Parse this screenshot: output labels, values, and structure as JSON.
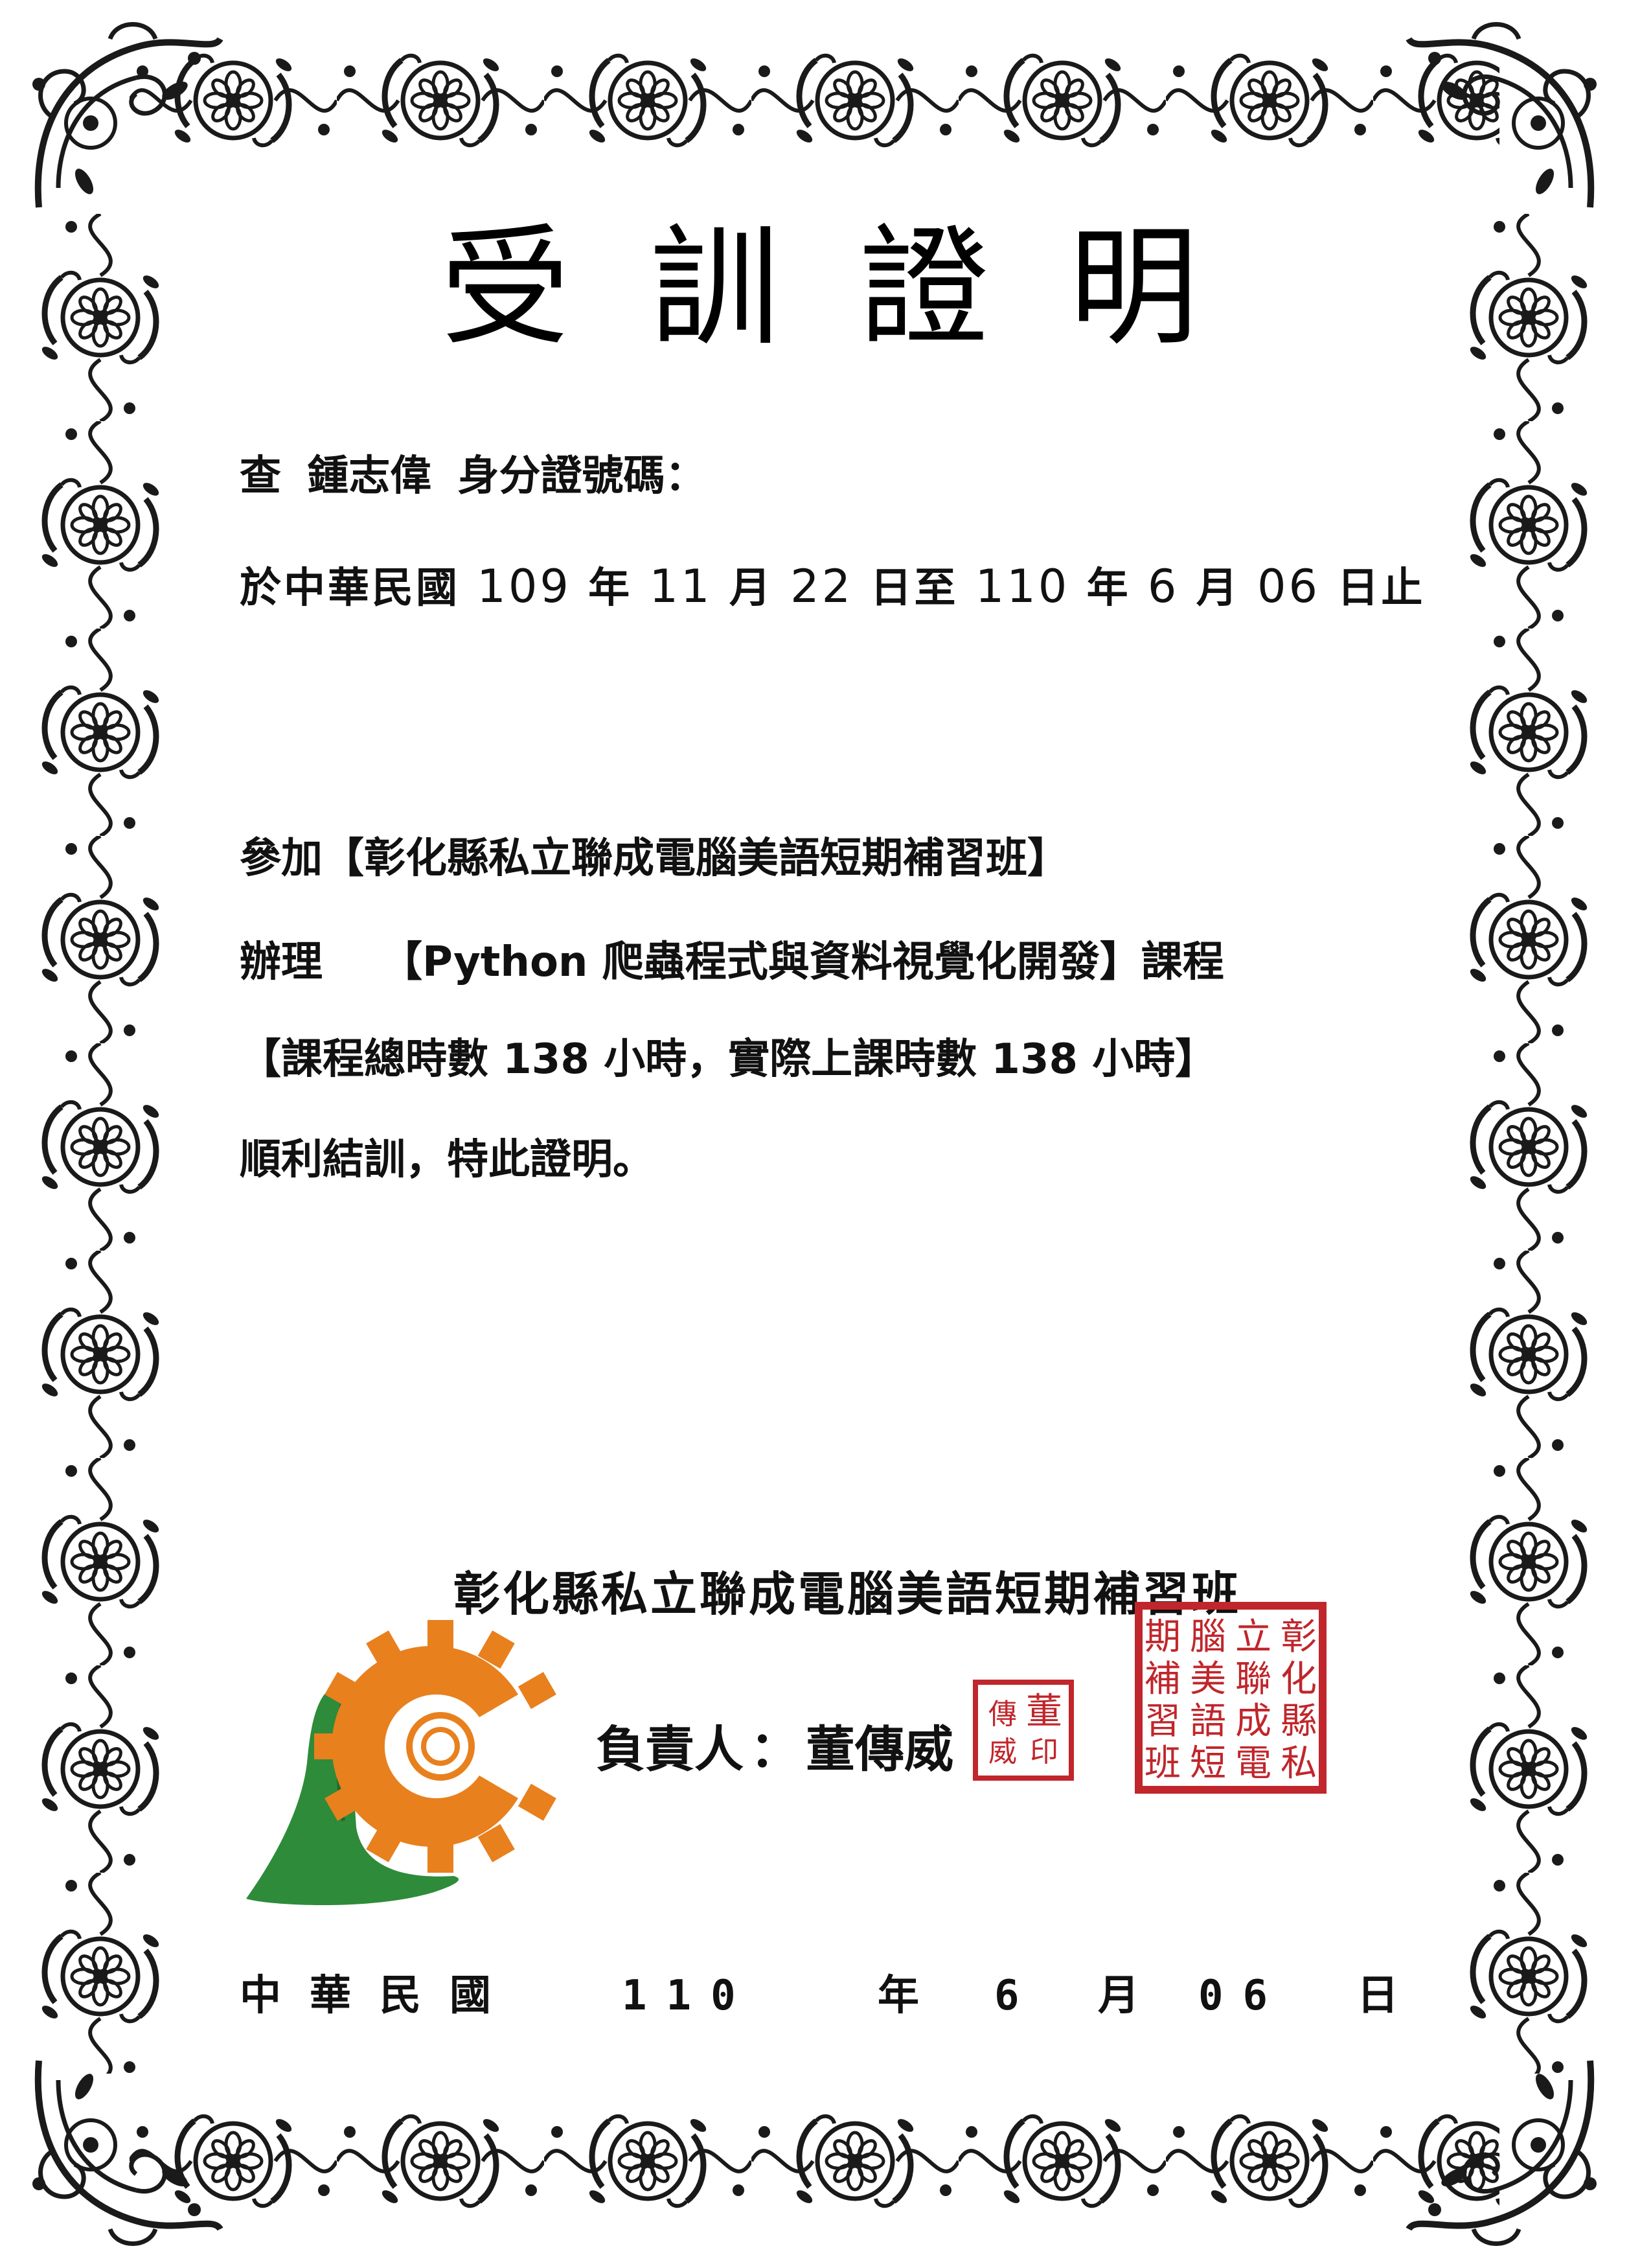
{
  "certificate": {
    "title_chars": [
      "受",
      "訓",
      "證",
      "明"
    ],
    "name_line": {
      "prefix": "查",
      "name": "鍾志偉",
      "id_label": "身分證號碼："
    },
    "period_line": {
      "prefix": "於中華民國",
      "start_year": "109",
      "start_year_unit": "年",
      "start_month": "11",
      "start_month_unit": "月",
      "start_day": "22",
      "start_day_unit": "日至",
      "end_year": "110",
      "end_year_unit": "年",
      "end_month": "6",
      "end_month_unit": "月",
      "end_day": "06",
      "end_day_unit": "日止"
    },
    "attend_line": {
      "label": "參加",
      "school": "【彰化縣私立聯成電腦美語短期補習班】"
    },
    "course_line": {
      "label": "辦理",
      "course": "【Python 爬蟲程式與資料視覺化開發】課程"
    },
    "hours_line": {
      "text": "【課程總時數 138 小時，實際上課時數 138 小時】"
    },
    "closing_line": {
      "text": "順利結訓，特此證明。"
    },
    "issuer": {
      "org_name": "彰化縣私立聯成電腦美語短期補習班",
      "principal_label": "負責人",
      "principal_sep": "：",
      "principal_name": "董傳威",
      "small_seal_chars": [
        "董",
        "傳",
        "威"
      ],
      "large_seal_chars": [
        "彰",
        "化",
        "縣",
        "私",
        "立",
        "聯",
        "成",
        "電",
        "腦",
        "美",
        "語",
        "短",
        "期",
        "補",
        "習",
        "班"
      ]
    },
    "issue_date": {
      "era": "中華民國",
      "year": "110",
      "year_unit": "年",
      "month": "6",
      "month_unit": "月",
      "day": "06",
      "day_unit": "日"
    },
    "colors": {
      "seal_red": "#c0262b",
      "logo_orange": "#e8801e",
      "logo_green": "#2e8b3a",
      "ornament": "#1a1a1a"
    },
    "icons": {
      "logo": "gear-hand-logo",
      "ornament": "floral-scroll-border"
    }
  }
}
